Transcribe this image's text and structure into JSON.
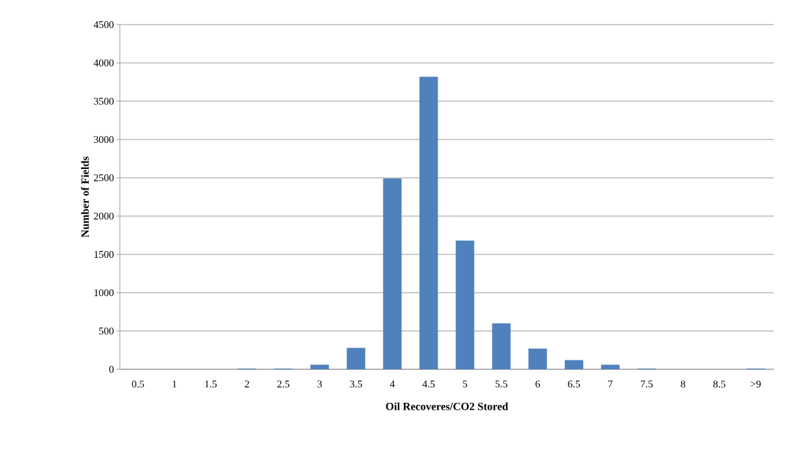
{
  "chart_data": {
    "type": "bar",
    "xlabel": "Oil Recoveres/CO2 Stored",
    "ylabel": "Number of Fields",
    "categories": [
      "0.5",
      "1",
      "1.5",
      "2",
      "2.5",
      "3",
      "3.5",
      "4",
      "4.5",
      "5",
      "5.5",
      "6",
      "6.5",
      "7",
      "7.5",
      "8",
      "8.5",
      ">9"
    ],
    "values": [
      0,
      0,
      0,
      10,
      10,
      60,
      280,
      2490,
      3820,
      1680,
      600,
      270,
      120,
      60,
      10,
      0,
      0,
      10
    ],
    "color": "#4f81bd",
    "ylim": [
      0,
      4500
    ],
    "yticks": [
      0,
      500,
      1000,
      1500,
      2000,
      2500,
      3000,
      3500,
      4000,
      4500
    ],
    "grid": "y"
  }
}
